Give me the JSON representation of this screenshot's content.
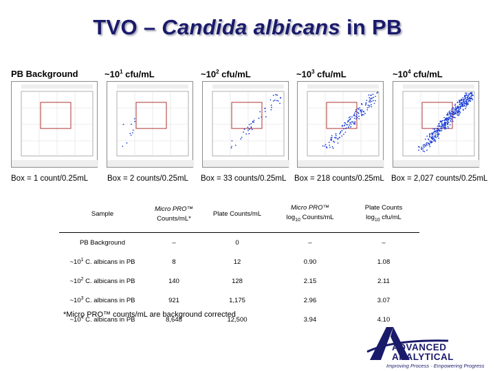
{
  "title": {
    "prefix": "TVO – ",
    "italic": "Candida albicans",
    "suffix": " in PB"
  },
  "panels": [
    {
      "header": "PB Background",
      "box": "Box = 1 count/0.25mL",
      "header_base": "",
      "exp": "",
      "header_unit": ""
    },
    {
      "header": "",
      "header_base": "~10",
      "exp": "1",
      "header_unit": " cfu/mL",
      "box": "Box = 2 counts/0.25mL"
    },
    {
      "header": "",
      "header_base": "~10",
      "exp": "2",
      "header_unit": " cfu/mL",
      "box": "Box = 33 counts/0.25mL"
    },
    {
      "header": "",
      "header_base": "~10",
      "exp": "3",
      "header_unit": " cfu/mL",
      "box": "Box = 218 counts/0.25mL"
    },
    {
      "header": "",
      "header_base": "~10",
      "exp": "4",
      "header_unit": " cfu/mL",
      "box": "Box = 2,027 counts/0.25mL"
    }
  ],
  "table": {
    "headers": {
      "sample": "Sample",
      "micro_counts_1": "Micro PRO™",
      "micro_counts_2": "Counts/mL*",
      "plate_counts": "Plate Counts/mL",
      "micro_log_1": "Micro PRO™",
      "micro_log_2a": "log",
      "micro_log_sub": "10",
      "micro_log_2b": " Counts/mL",
      "plate_log_1": "Plate Counts",
      "plate_log_2a": "log",
      "plate_log_sub": "10",
      "plate_log_2b": " cfu/mL"
    },
    "rows": [
      {
        "sample_prefix": "PB Background",
        "sample_exp": "",
        "sample_suffix": "",
        "micro": "–",
        "plate": "0",
        "micro_log": "–",
        "plate_log": "–"
      },
      {
        "sample_prefix": "~10",
        "sample_exp": "1",
        "sample_suffix": " C. albicans in PB",
        "micro": "8",
        "plate": "12",
        "micro_log": "0.90",
        "plate_log": "1.08"
      },
      {
        "sample_prefix": "~10",
        "sample_exp": "2",
        "sample_suffix": " C. albicans in PB",
        "micro": "140",
        "plate": "128",
        "micro_log": "2.15",
        "plate_log": "2.11"
      },
      {
        "sample_prefix": "~10",
        "sample_exp": "3",
        "sample_suffix": " C. albicans in PB",
        "micro": "921",
        "plate": "1,175",
        "micro_log": "2.96",
        "plate_log": "3.07"
      },
      {
        "sample_prefix": "~10",
        "sample_exp": "4",
        "sample_suffix": " C. albicans in PB",
        "micro": "8,648",
        "plate": "12,500",
        "micro_log": "3.94",
        "plate_log": "4.10"
      }
    ]
  },
  "footnote": "*Micro PRO™ counts/mL are background corrected",
  "logo": {
    "line1": "ADVANCED",
    "line2": "ANALYTICAL",
    "tagline": "Improving Process · Empowering Progress"
  },
  "colors": {
    "title": "#1a1a6b",
    "dots": "#1c3fd6",
    "gate_box": "#b03030"
  }
}
